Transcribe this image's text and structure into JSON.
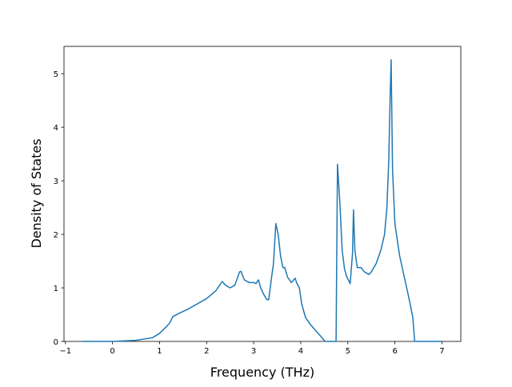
{
  "chart_data": {
    "type": "line",
    "xlabel": "Frequency (THz)",
    "ylabel": "Density of States",
    "color": "#1f77b4",
    "x": [
      -0.65,
      0,
      0.5,
      0.85,
      1.0,
      1.15,
      1.22,
      1.28,
      1.4,
      1.6,
      1.8,
      2.0,
      2.2,
      2.33,
      2.4,
      2.5,
      2.6,
      2.7,
      2.73,
      2.8,
      2.9,
      3.0,
      3.05,
      3.1,
      3.15,
      3.2,
      3.28,
      3.32,
      3.38,
      3.42,
      3.47,
      3.52,
      3.57,
      3.62,
      3.66,
      3.72,
      3.8,
      3.88,
      3.92,
      3.97,
      4.02,
      4.1,
      4.2,
      4.3,
      4.4,
      4.5,
      4.52,
      4.75,
      4.78,
      4.83,
      4.88,
      4.93,
      4.98,
      5.05,
      5.1,
      5.12,
      5.15,
      5.2,
      5.28,
      5.35,
      5.45,
      5.5,
      5.6,
      5.7,
      5.78,
      5.83,
      5.87,
      5.9,
      5.92,
      5.95,
      6.0,
      6.1,
      6.2,
      6.3,
      6.38,
      6.42,
      7.0
    ],
    "values": [
      0,
      0,
      0.02,
      0.07,
      0.15,
      0.28,
      0.35,
      0.46,
      0.52,
      0.6,
      0.7,
      0.8,
      0.95,
      1.12,
      1.05,
      1.0,
      1.05,
      1.3,
      1.31,
      1.15,
      1.1,
      1.1,
      1.08,
      1.15,
      1.0,
      0.9,
      0.78,
      0.78,
      1.2,
      1.45,
      2.2,
      2.0,
      1.6,
      1.38,
      1.38,
      1.2,
      1.1,
      1.18,
      1.08,
      1.0,
      0.7,
      0.45,
      0.32,
      0.22,
      0.12,
      0.02,
      0,
      0,
      3.31,
      2.6,
      1.7,
      1.35,
      1.2,
      1.08,
      1.65,
      2.46,
      1.7,
      1.38,
      1.38,
      1.3,
      1.25,
      1.3,
      1.45,
      1.7,
      2.0,
      2.5,
      3.4,
      4.6,
      5.26,
      3.2,
      2.2,
      1.6,
      1.2,
      0.8,
      0.45,
      0,
      0
    ],
    "xlim": [
      -1.03,
      7.4
    ],
    "ylim": [
      0,
      5.51
    ],
    "xticks": [
      {
        "value": -1,
        "label": "−1"
      },
      0,
      1,
      2,
      3,
      4,
      5,
      6,
      7
    ],
    "yticks": [
      0,
      1,
      2,
      3,
      4,
      5
    ]
  }
}
